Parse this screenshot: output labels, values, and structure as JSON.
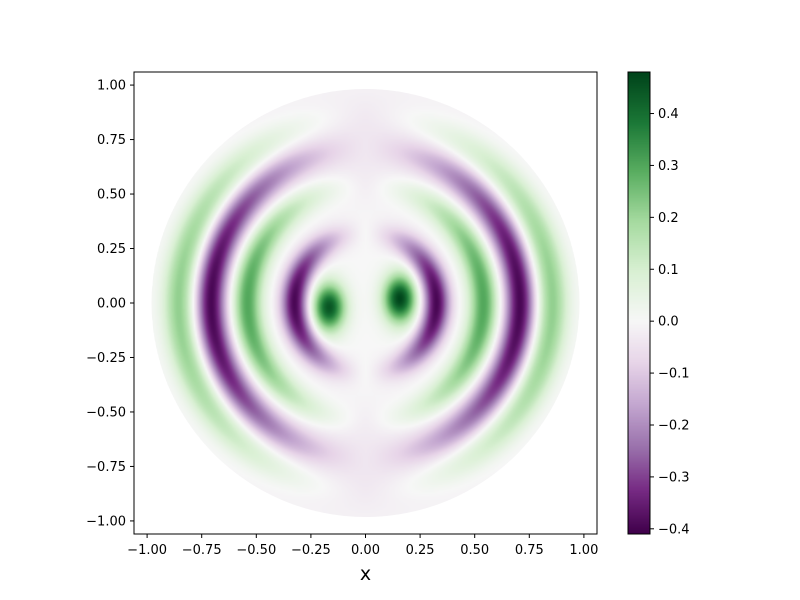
{
  "chart_data": {
    "type": "heatmap",
    "title": "",
    "xlabel": "x",
    "ylabel": "",
    "xlim": [
      -1.06,
      1.06
    ],
    "ylim": [
      -1.06,
      1.06
    ],
    "x_ticks": [
      "−1.00",
      "−0.75",
      "−0.50",
      "−0.25",
      "0.00",
      "0.25",
      "0.50",
      "0.75",
      "1.00"
    ],
    "x_tick_values": [
      -1.0,
      -0.75,
      -0.5,
      -0.25,
      0.0,
      0.25,
      0.5,
      0.75,
      1.0
    ],
    "y_ticks": [
      "1.00",
      "0.75",
      "0.50",
      "0.25",
      "0.00",
      "−0.25",
      "−0.50",
      "−0.75",
      "−1.00"
    ],
    "y_tick_values": [
      1.0,
      0.75,
      0.5,
      0.25,
      0.0,
      -0.25,
      -0.5,
      -0.75,
      -1.0
    ],
    "domain": "unit disk",
    "grid": false,
    "colormap": "PRGn",
    "colormap_colors": [
      "#40004b",
      "#762a83",
      "#9970ab",
      "#c2a5cf",
      "#e7d4e8",
      "#f7f7f7",
      "#d9f0d3",
      "#a6dba0",
      "#5aae61",
      "#1b7837",
      "#00441b"
    ],
    "colorbar": {
      "range": [
        -0.41,
        0.48
      ],
      "ticks": [
        "0.4",
        "0.3",
        "0.2",
        "0.1",
        "0.0",
        "−0.1",
        "−0.2",
        "−0.3",
        "−0.4"
      ],
      "tick_values": [
        0.4,
        0.3,
        0.2,
        0.1,
        0.0,
        -0.1,
        -0.2,
        -0.3,
        -0.4
      ],
      "placement": "right"
    },
    "features": [
      {
        "kind": "peak",
        "x": -0.17,
        "y": -0.02,
        "value": 0.45
      },
      {
        "kind": "peak",
        "x": 0.16,
        "y": 0.02,
        "value": 0.48
      },
      {
        "kind": "ring",
        "radius": 0.33,
        "value": -0.4
      },
      {
        "kind": "ring",
        "radius": 0.55,
        "value": 0.3
      },
      {
        "kind": "ring",
        "radius": 0.72,
        "value": -0.4
      },
      {
        "kind": "ring",
        "radius": 0.87,
        "value": 0.22
      }
    ]
  }
}
